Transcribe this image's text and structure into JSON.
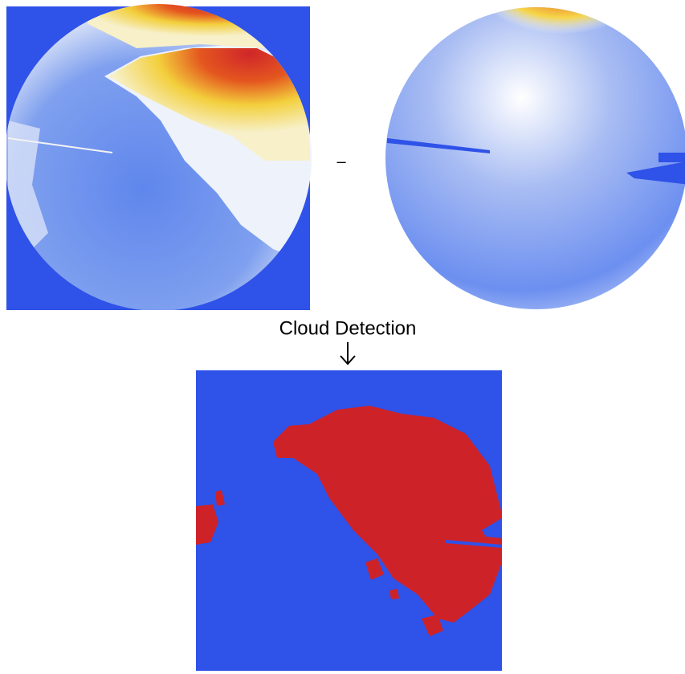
{
  "operator": "–",
  "step_label": "Cloud Detection"
}
